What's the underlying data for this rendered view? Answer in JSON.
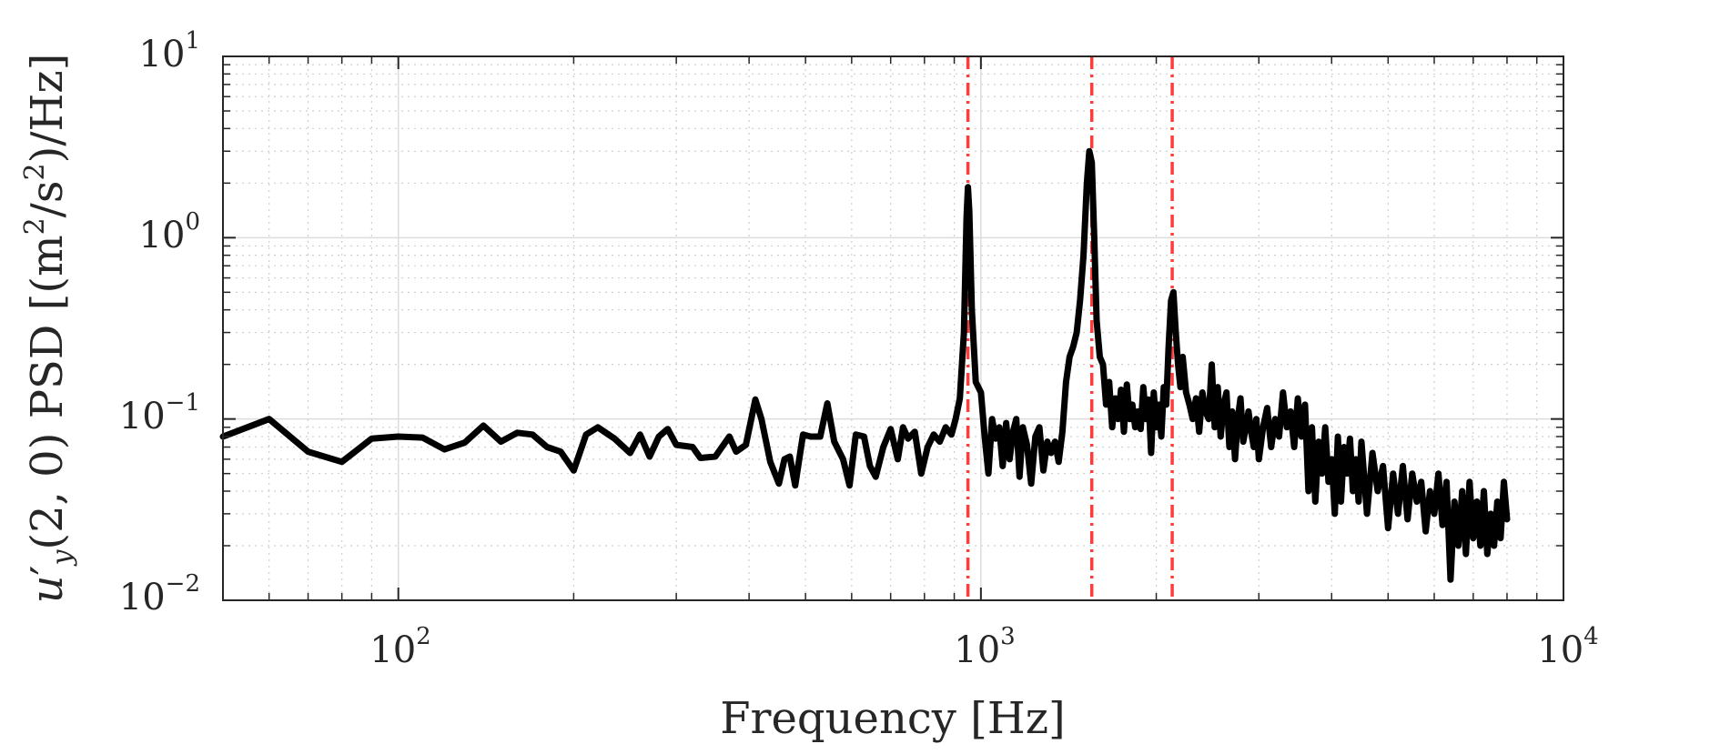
{
  "chart_data": {
    "type": "line",
    "xlabel": "Frequency [Hz]",
    "ylabel": {
      "symbol": "u",
      "prime": "′",
      "subscript": "y",
      "args": "(2, 0)",
      "measure": " PSD [(m",
      "exp1": "2",
      "mid": "/s",
      "exp2": "2",
      "tail": ")/Hz]"
    },
    "xscale": "log",
    "yscale": "log",
    "xlim": [
      50,
      10000
    ],
    "ylim": [
      0.01,
      10
    ],
    "grid": true,
    "minor_grid": true,
    "x_ticks": [
      {
        "base": "10",
        "exp": "2",
        "value": 100
      },
      {
        "base": "10",
        "exp": "3",
        "value": 1000
      },
      {
        "base": "10",
        "exp": "4",
        "value": 10000
      }
    ],
    "y_ticks": [
      {
        "base": "10",
        "exp": "1",
        "value": 10
      },
      {
        "base": "10",
        "exp": "0",
        "value": 1
      },
      {
        "base": "10",
        "exp": "−1",
        "value": 0.1
      },
      {
        "base": "10",
        "exp": "−2",
        "value": 0.01
      }
    ],
    "vlines": {
      "color": "#ff3b3b",
      "style": "dash-dot",
      "x": [
        950,
        1550,
        2130
      ]
    },
    "series": [
      {
        "color": "#000000",
        "points": [
          [
            50,
            0.08
          ],
          [
            60,
            0.1
          ],
          [
            70,
            0.066
          ],
          [
            80,
            0.058
          ],
          [
            90,
            0.078
          ],
          [
            100,
            0.08
          ],
          [
            110,
            0.079
          ],
          [
            120,
            0.068
          ],
          [
            130,
            0.074
          ],
          [
            140,
            0.092
          ],
          [
            150,
            0.075
          ],
          [
            160,
            0.084
          ],
          [
            170,
            0.082
          ],
          [
            180,
            0.07
          ],
          [
            190,
            0.066
          ],
          [
            200,
            0.052
          ],
          [
            210,
            0.082
          ],
          [
            220,
            0.09
          ],
          [
            235,
            0.078
          ],
          [
            250,
            0.065
          ],
          [
            260,
            0.082
          ],
          [
            270,
            0.062
          ],
          [
            280,
            0.08
          ],
          [
            290,
            0.088
          ],
          [
            300,
            0.072
          ],
          [
            320,
            0.07
          ],
          [
            330,
            0.061
          ],
          [
            350,
            0.062
          ],
          [
            370,
            0.08
          ],
          [
            380,
            0.066
          ],
          [
            395,
            0.072
          ],
          [
            410,
            0.128
          ],
          [
            420,
            0.1
          ],
          [
            435,
            0.058
          ],
          [
            450,
            0.044
          ],
          [
            460,
            0.06
          ],
          [
            470,
            0.062
          ],
          [
            480,
            0.043
          ],
          [
            495,
            0.082
          ],
          [
            510,
            0.08
          ],
          [
            530,
            0.08
          ],
          [
            545,
            0.122
          ],
          [
            560,
            0.075
          ],
          [
            580,
            0.06
          ],
          [
            595,
            0.043
          ],
          [
            610,
            0.082
          ],
          [
            630,
            0.08
          ],
          [
            645,
            0.055
          ],
          [
            660,
            0.048
          ],
          [
            680,
            0.07
          ],
          [
            700,
            0.088
          ],
          [
            720,
            0.06
          ],
          [
            735,
            0.09
          ],
          [
            750,
            0.078
          ],
          [
            770,
            0.085
          ],
          [
            790,
            0.05
          ],
          [
            810,
            0.07
          ],
          [
            830,
            0.082
          ],
          [
            850,
            0.075
          ],
          [
            870,
            0.09
          ],
          [
            890,
            0.082
          ],
          [
            905,
            0.1
          ],
          [
            920,
            0.13
          ],
          [
            935,
            0.3
          ],
          [
            945,
            1.3
          ],
          [
            950,
            1.9
          ],
          [
            955,
            1.4
          ],
          [
            965,
            0.4
          ],
          [
            980,
            0.16
          ],
          [
            1000,
            0.14
          ],
          [
            1015,
            0.08
          ],
          [
            1030,
            0.05
          ],
          [
            1045,
            0.1
          ],
          [
            1060,
            0.078
          ],
          [
            1075,
            0.09
          ],
          [
            1090,
            0.055
          ],
          [
            1105,
            0.095
          ],
          [
            1120,
            0.06
          ],
          [
            1135,
            0.085
          ],
          [
            1150,
            0.1
          ],
          [
            1165,
            0.048
          ],
          [
            1180,
            0.09
          ],
          [
            1200,
            0.072
          ],
          [
            1220,
            0.044
          ],
          [
            1240,
            0.08
          ],
          [
            1260,
            0.09
          ],
          [
            1280,
            0.052
          ],
          [
            1300,
            0.075
          ],
          [
            1320,
            0.065
          ],
          [
            1340,
            0.075
          ],
          [
            1360,
            0.058
          ],
          [
            1380,
            0.085
          ],
          [
            1400,
            0.16
          ],
          [
            1420,
            0.22
          ],
          [
            1440,
            0.25
          ],
          [
            1460,
            0.3
          ],
          [
            1480,
            0.45
          ],
          [
            1500,
            0.8
          ],
          [
            1520,
            2.0
          ],
          [
            1535,
            3.0
          ],
          [
            1550,
            2.6
          ],
          [
            1565,
            1.0
          ],
          [
            1580,
            0.35
          ],
          [
            1600,
            0.22
          ],
          [
            1620,
            0.2
          ],
          [
            1640,
            0.12
          ],
          [
            1660,
            0.16
          ],
          [
            1680,
            0.09
          ],
          [
            1700,
            0.13
          ],
          [
            1720,
            0.1
          ],
          [
            1740,
            0.145
          ],
          [
            1760,
            0.085
          ],
          [
            1780,
            0.155
          ],
          [
            1800,
            0.1
          ],
          [
            1820,
            0.12
          ],
          [
            1840,
            0.09
          ],
          [
            1860,
            0.11
          ],
          [
            1880,
            0.088
          ],
          [
            1900,
            0.15
          ],
          [
            1920,
            0.1
          ],
          [
            1940,
            0.128
          ],
          [
            1960,
            0.065
          ],
          [
            1980,
            0.14
          ],
          [
            2000,
            0.09
          ],
          [
            2020,
            0.12
          ],
          [
            2040,
            0.08
          ],
          [
            2060,
            0.15
          ],
          [
            2080,
            0.12
          ],
          [
            2100,
            0.25
          ],
          [
            2120,
            0.45
          ],
          [
            2140,
            0.5
          ],
          [
            2160,
            0.3
          ],
          [
            2180,
            0.2
          ],
          [
            2200,
            0.15
          ],
          [
            2220,
            0.22
          ],
          [
            2250,
            0.14
          ],
          [
            2280,
            0.12
          ],
          [
            2310,
            0.1
          ],
          [
            2340,
            0.13
          ],
          [
            2370,
            0.085
          ],
          [
            2400,
            0.14
          ],
          [
            2430,
            0.11
          ],
          [
            2460,
            0.1
          ],
          [
            2490,
            0.2
          ],
          [
            2520,
            0.09
          ],
          [
            2550,
            0.15
          ],
          [
            2580,
            0.08
          ],
          [
            2610,
            0.12
          ],
          [
            2640,
            0.14
          ],
          [
            2670,
            0.07
          ],
          [
            2700,
            0.11
          ],
          [
            2730,
            0.06
          ],
          [
            2760,
            0.1
          ],
          [
            2790,
            0.13
          ],
          [
            2820,
            0.075
          ],
          [
            2850,
            0.09
          ],
          [
            2880,
            0.11
          ],
          [
            2910,
            0.085
          ],
          [
            2940,
            0.07
          ],
          [
            2970,
            0.1
          ],
          [
            3000,
            0.06
          ],
          [
            3050,
            0.09
          ],
          [
            3100,
            0.115
          ],
          [
            3150,
            0.07
          ],
          [
            3200,
            0.1
          ],
          [
            3250,
            0.08
          ],
          [
            3300,
            0.14
          ],
          [
            3350,
            0.09
          ],
          [
            3400,
            0.11
          ],
          [
            3450,
            0.07
          ],
          [
            3500,
            0.13
          ],
          [
            3550,
            0.08
          ],
          [
            3600,
            0.12
          ],
          [
            3650,
            0.04
          ],
          [
            3700,
            0.09
          ],
          [
            3750,
            0.035
          ],
          [
            3800,
            0.075
          ],
          [
            3850,
            0.05
          ],
          [
            3900,
            0.09
          ],
          [
            3950,
            0.045
          ],
          [
            4000,
            0.06
          ],
          [
            4050,
            0.03
          ],
          [
            4100,
            0.08
          ],
          [
            4150,
            0.035
          ],
          [
            4200,
            0.07
          ],
          [
            4250,
            0.05
          ],
          [
            4300,
            0.078
          ],
          [
            4350,
            0.04
          ],
          [
            4400,
            0.06
          ],
          [
            4450,
            0.035
          ],
          [
            4500,
            0.075
          ],
          [
            4600,
            0.03
          ],
          [
            4700,
            0.065
          ],
          [
            4800,
            0.04
          ],
          [
            4900,
            0.055
          ],
          [
            5000,
            0.025
          ],
          [
            5100,
            0.05
          ],
          [
            5200,
            0.03
          ],
          [
            5300,
            0.055
          ],
          [
            5400,
            0.028
          ],
          [
            5500,
            0.05
          ],
          [
            5600,
            0.035
          ],
          [
            5700,
            0.045
          ],
          [
            5800,
            0.024
          ],
          [
            5900,
            0.04
          ],
          [
            6000,
            0.03
          ],
          [
            6100,
            0.05
          ],
          [
            6200,
            0.026
          ],
          [
            6300,
            0.045
          ],
          [
            6400,
            0.013
          ],
          [
            6500,
            0.035
          ],
          [
            6600,
            0.02
          ],
          [
            6700,
            0.04
          ],
          [
            6800,
            0.018
          ],
          [
            6900,
            0.045
          ],
          [
            7000,
            0.022
          ],
          [
            7100,
            0.035
          ],
          [
            7200,
            0.02
          ],
          [
            7300,
            0.04
          ],
          [
            7400,
            0.018
          ],
          [
            7500,
            0.03
          ],
          [
            7600,
            0.02
          ],
          [
            7700,
            0.035
          ],
          [
            7800,
            0.022
          ],
          [
            7900,
            0.045
          ],
          [
            8000,
            0.028
          ]
        ]
      }
    ]
  }
}
